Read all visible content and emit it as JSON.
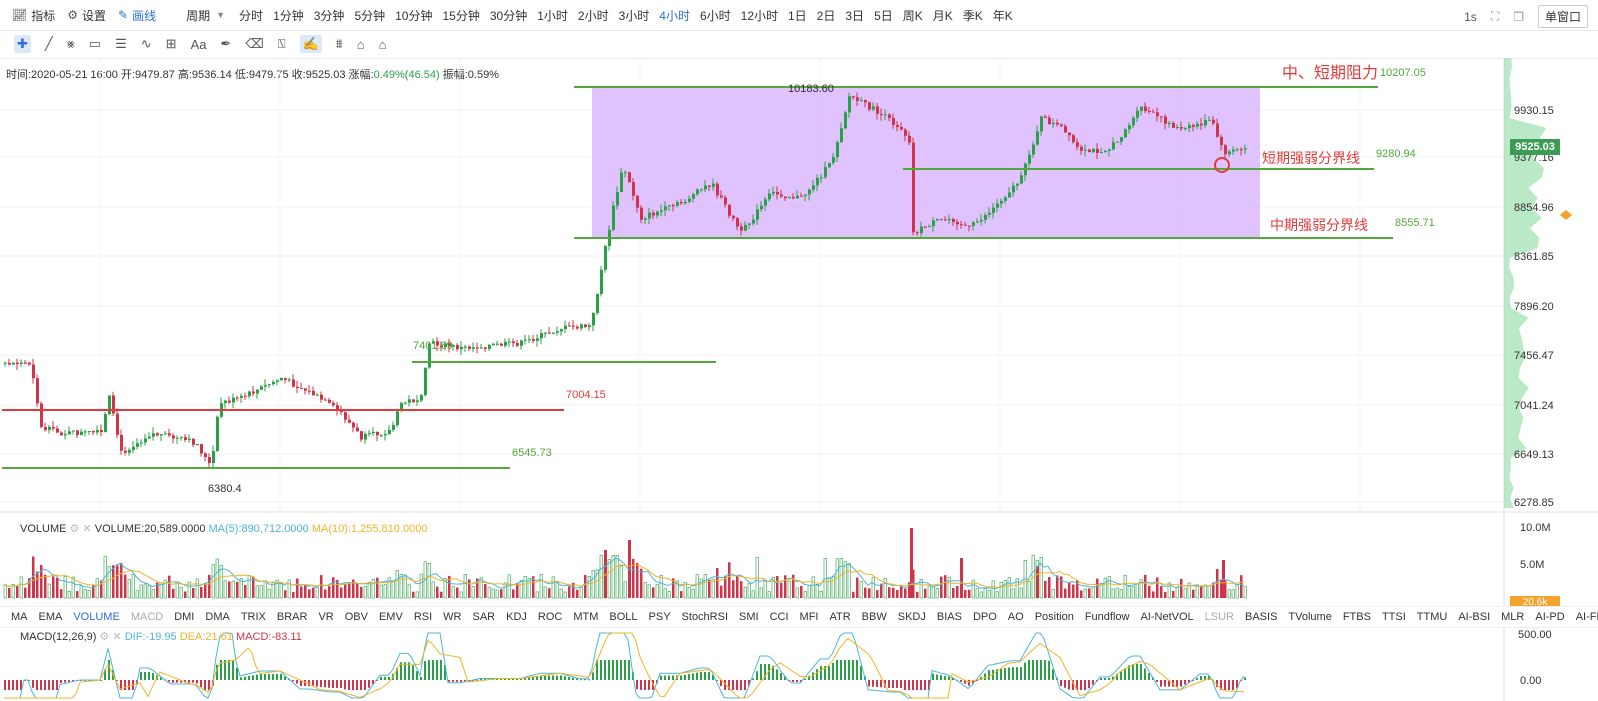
{
  "toolbar": {
    "indicator_label": "指标",
    "settings_label": "设置",
    "draw_label": "画线",
    "period_label": "周期",
    "periods": [
      "分时",
      "1分钟",
      "3分钟",
      "5分钟",
      "10分钟",
      "15分钟",
      "30分钟",
      "1小时",
      "2小时",
      "3小时",
      "4小时",
      "6小时",
      "12小时",
      "1日",
      "2日",
      "3日",
      "5日",
      "周K",
      "月K",
      "季K",
      "年K"
    ],
    "active_period": "4小时",
    "interval": "1s",
    "window_mode": "单窗口"
  },
  "draw_tools": [
    "crosshair",
    "line",
    "multi-line",
    "rect",
    "lines",
    "wave",
    "measure",
    "text",
    "brush",
    "erase",
    "ruler",
    "magnet",
    "fib",
    "lock",
    "delete"
  ],
  "info": {
    "time": "时间:2020-05-21 16:00",
    "open": "开:9479.87",
    "high": "高:9536.14",
    "low": "低:9479.75",
    "close": "收:9525.03",
    "change_label": "涨幅:",
    "change": "0.49%(46.54)",
    "amplitude": "振幅:0.59%"
  },
  "annotations": {
    "resistance_label": "中、短期阻力",
    "resistance_value": "10207.05",
    "short_label": "短期强弱分界线",
    "short_value": "9280.94",
    "mid_label": "中期强弱分界线",
    "mid_value": "8555.71",
    "level_7401": "7401.69",
    "level_7004": "7004.15",
    "level_6545": "6545.73",
    "high_mark": "10183.60",
    "low_mark": "6380.4"
  },
  "price_axis": [
    "9930.15",
    "9377.16",
    "8854.96",
    "8361.85",
    "7896.20",
    "7456.47",
    "7041.24",
    "6649.13",
    "6278.85"
  ],
  "current_price": "9525.03",
  "volume": {
    "title": "VOLUME",
    "value": "VOLUME:20,589.0000",
    "ma5": "MA(5):890,712.0000",
    "ma10": "MA(10):1,255,810.0000",
    "axis_top": "10.0M",
    "axis_mid": "5.0M",
    "current": "20.6k"
  },
  "indicator_tabs": [
    "MA",
    "EMA",
    "VOLUME",
    "MACD",
    "DMI",
    "DMA",
    "TRIX",
    "BRAR",
    "VR",
    "OBV",
    "EMV",
    "RSI",
    "WR",
    "SAR",
    "KDJ",
    "ROC",
    "MTM",
    "BOLL",
    "PSY",
    "StochRSI",
    "SMI",
    "CCI",
    "MFI",
    "ATR",
    "BBW",
    "SKDJ",
    "BIAS",
    "DPO",
    "AO",
    "Position",
    "Fundflow",
    "AI-NetVOL",
    "LSUR",
    "BASIS",
    "TVolume",
    "FTBS",
    "TTSI",
    "TTMU",
    "AI-BSI",
    "MLR",
    "AI-PD",
    "AI-FDI"
  ],
  "active_indicators": [
    "VOLUME"
  ],
  "dim_indicators": [
    "MACD",
    "LSUR"
  ],
  "macd": {
    "title": "MACD(12,26,9)",
    "dif": "DIF:-19.95",
    "dea": "DEA:21.61",
    "macd": "MACD:-83.11",
    "axis_top": "500.00",
    "axis_zero": "0.00"
  },
  "colors": {
    "up": "#2aa147",
    "down": "#d0344a",
    "accent": "#2d6fd6",
    "zone": "#d8b4fe",
    "level_green": "#52a83a",
    "level_red": "#e23b3b"
  }
}
